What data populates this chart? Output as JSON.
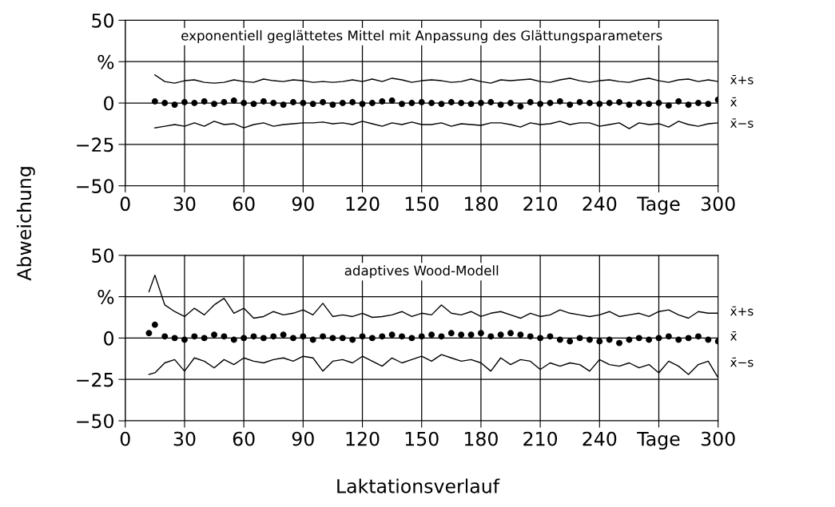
{
  "chart_data": [
    {
      "type": "line",
      "title": "exponentiell geglättetes Mittel mit Anpassung des Glättungsparameters",
      "ylabel": "Abweichung",
      "xlim": [
        0,
        300
      ],
      "xticks": [
        0,
        30,
        60,
        90,
        120,
        150,
        180,
        210,
        240,
        {
          "value": 270,
          "label": "Tage"
        },
        300
      ],
      "ylim": [
        -50,
        50
      ],
      "yticks": [
        -50,
        -25,
        0,
        {
          "value": 25,
          "label": "%"
        },
        50
      ],
      "grid": true,
      "color": "#000000",
      "series": [
        {
          "name": "x̄+s",
          "x": [
            15,
            20,
            25,
            30,
            35,
            40,
            45,
            50,
            55,
            60,
            65,
            70,
            75,
            80,
            85,
            90,
            95,
            100,
            105,
            110,
            115,
            120,
            125,
            130,
            135,
            140,
            145,
            150,
            155,
            160,
            165,
            170,
            175,
            180,
            185,
            190,
            195,
            200,
            205,
            210,
            215,
            220,
            225,
            230,
            235,
            240,
            245,
            250,
            255,
            260,
            265,
            270,
            275,
            280,
            285,
            290,
            295,
            300
          ],
          "values": [
            17,
            13,
            12,
            13.5,
            14,
            12.5,
            12,
            12.5,
            14,
            13,
            12.5,
            14.5,
            13.5,
            13,
            14,
            13.5,
            12.5,
            13,
            12.5,
            13,
            14,
            13,
            14.5,
            13,
            15,
            14,
            12.5,
            13.5,
            14,
            13.5,
            12.5,
            13,
            14.5,
            13,
            12,
            14,
            13.5,
            14,
            14.5,
            13,
            12.5,
            14,
            15,
            13.5,
            12.5,
            13.5,
            14,
            13,
            12.5,
            14,
            15,
            13.5,
            12.5,
            14,
            14.5,
            13,
            14,
            13
          ]
        },
        {
          "name": "x̄",
          "type": "scatter",
          "x": [
            15,
            20,
            25,
            30,
            35,
            40,
            45,
            50,
            55,
            60,
            65,
            70,
            75,
            80,
            85,
            90,
            95,
            100,
            105,
            110,
            115,
            120,
            125,
            130,
            135,
            140,
            145,
            150,
            155,
            160,
            165,
            170,
            175,
            180,
            185,
            190,
            195,
            200,
            205,
            210,
            215,
            220,
            225,
            230,
            235,
            240,
            245,
            250,
            255,
            260,
            265,
            270,
            275,
            280,
            285,
            290,
            295,
            300
          ],
          "values": [
            1,
            0,
            -1,
            0.5,
            0,
            1,
            -0.5,
            0.5,
            1.5,
            0,
            -0.5,
            1,
            0,
            -1,
            0.5,
            0,
            -0.5,
            0.5,
            -1,
            0,
            0.5,
            -0.5,
            0,
            1,
            1.5,
            -0.5,
            0,
            0.5,
            0,
            -0.5,
            0.5,
            0,
            -0.5,
            0,
            0.5,
            -1,
            0,
            -2,
            0.5,
            -0.5,
            0,
            1,
            -1,
            0.5,
            0,
            -0.5,
            0,
            0.5,
            -1,
            0,
            -0.5,
            0,
            -1.5,
            1,
            -1,
            0,
            -0.5,
            2
          ]
        },
        {
          "name": "x̄−s",
          "x": [
            15,
            20,
            25,
            30,
            35,
            40,
            45,
            50,
            55,
            60,
            65,
            70,
            75,
            80,
            85,
            90,
            95,
            100,
            105,
            110,
            115,
            120,
            125,
            130,
            135,
            140,
            145,
            150,
            155,
            160,
            165,
            170,
            175,
            180,
            185,
            190,
            195,
            200,
            205,
            210,
            215,
            220,
            225,
            230,
            235,
            240,
            245,
            250,
            255,
            260,
            265,
            270,
            275,
            280,
            285,
            290,
            295,
            300
          ],
          "values": [
            -15,
            -14,
            -13,
            -14,
            -12,
            -14,
            -11,
            -13,
            -12.5,
            -15,
            -13,
            -12,
            -14,
            -13,
            -12.5,
            -12,
            -12,
            -11.5,
            -12.5,
            -12,
            -13,
            -11,
            -12.5,
            -14,
            -12,
            -13,
            -11.5,
            -13,
            -13,
            -12,
            -14,
            -12.5,
            -13,
            -13.5,
            -12,
            -12,
            -13,
            -14.5,
            -12,
            -13,
            -12.5,
            -11,
            -13,
            -12,
            -12,
            -14,
            -13,
            -12,
            -15.5,
            -12,
            -13,
            -12.5,
            -14.5,
            -11,
            -13,
            -14,
            -12.5,
            -12
          ]
        }
      ]
    },
    {
      "type": "line",
      "title": "adaptives Wood-Modell",
      "xlabel": "Laktationsverlauf",
      "xlim": [
        0,
        300
      ],
      "xticks": [
        0,
        30,
        60,
        90,
        120,
        150,
        180,
        210,
        240,
        {
          "value": 270,
          "label": "Tage"
        },
        300
      ],
      "ylim": [
        -50,
        50
      ],
      "yticks": [
        -50,
        -25,
        0,
        {
          "value": 25,
          "label": "%"
        },
        50
      ],
      "grid": true,
      "color": "#000000",
      "series": [
        {
          "name": "x̄+s",
          "x": [
            12,
            15,
            20,
            25,
            30,
            35,
            40,
            45,
            50,
            55,
            60,
            65,
            70,
            75,
            80,
            85,
            90,
            95,
            100,
            105,
            110,
            115,
            120,
            125,
            130,
            135,
            140,
            145,
            150,
            155,
            160,
            165,
            170,
            175,
            180,
            185,
            190,
            195,
            200,
            205,
            210,
            215,
            220,
            225,
            230,
            235,
            240,
            245,
            250,
            255,
            260,
            265,
            270,
            275,
            280,
            285,
            290,
            295,
            300
          ],
          "values": [
            28,
            38,
            20,
            16,
            13,
            18,
            14,
            20,
            24,
            15,
            18,
            12,
            13,
            16,
            14,
            15,
            17,
            14,
            21,
            13,
            14,
            13,
            15,
            12.5,
            13,
            14,
            16,
            13,
            15,
            14,
            20,
            15,
            14,
            16,
            13,
            15,
            16,
            14,
            12,
            15,
            13,
            14,
            17,
            15,
            14,
            13,
            14,
            16,
            13,
            14,
            15,
            13,
            16,
            17,
            14,
            12,
            16,
            15,
            15
          ]
        },
        {
          "name": "x̄",
          "type": "scatter",
          "x": [
            12,
            15,
            20,
            25,
            30,
            35,
            40,
            45,
            50,
            55,
            60,
            65,
            70,
            75,
            80,
            85,
            90,
            95,
            100,
            105,
            110,
            115,
            120,
            125,
            130,
            135,
            140,
            145,
            150,
            155,
            160,
            165,
            170,
            175,
            180,
            185,
            190,
            195,
            200,
            205,
            210,
            215,
            220,
            225,
            230,
            235,
            240,
            245,
            250,
            255,
            260,
            265,
            270,
            275,
            280,
            285,
            290,
            295,
            300
          ],
          "values": [
            3,
            8,
            1,
            0,
            -1,
            1,
            0,
            2,
            1,
            -1,
            0,
            1,
            0,
            1,
            2,
            0,
            1,
            -1,
            1,
            0,
            0,
            -1,
            1,
            0,
            1,
            2,
            1,
            0,
            1,
            2,
            1,
            3,
            2,
            2,
            3,
            1,
            2,
            3,
            2,
            1,
            0,
            1,
            -1,
            -2,
            0,
            -1,
            -2,
            -1,
            -3,
            -1,
            0,
            -1,
            0,
            1,
            -1,
            0,
            1,
            -1,
            -2
          ]
        },
        {
          "name": "x̄−s",
          "x": [
            12,
            15,
            20,
            25,
            30,
            35,
            40,
            45,
            50,
            55,
            60,
            65,
            70,
            75,
            80,
            85,
            90,
            95,
            100,
            105,
            110,
            115,
            120,
            125,
            130,
            135,
            140,
            145,
            150,
            155,
            160,
            165,
            170,
            175,
            180,
            185,
            190,
            195,
            200,
            205,
            210,
            215,
            220,
            225,
            230,
            235,
            240,
            245,
            250,
            255,
            260,
            265,
            270,
            275,
            280,
            285,
            290,
            295,
            300
          ],
          "values": [
            -22,
            -21,
            -15,
            -13,
            -20,
            -12,
            -14,
            -18,
            -13,
            -16,
            -12,
            -14,
            -15,
            -13,
            -12,
            -14,
            -11,
            -12,
            -20,
            -14,
            -13,
            -15,
            -11,
            -14,
            -17,
            -12,
            -15,
            -13,
            -11,
            -14,
            -10,
            -12,
            -14,
            -13,
            -15,
            -20,
            -12,
            -16,
            -13,
            -14,
            -19,
            -15,
            -17,
            -15,
            -16,
            -20,
            -13,
            -16,
            -17,
            -15,
            -18,
            -16,
            -21,
            -14,
            -17,
            -22,
            -16,
            -14,
            -24
          ]
        }
      ]
    }
  ]
}
